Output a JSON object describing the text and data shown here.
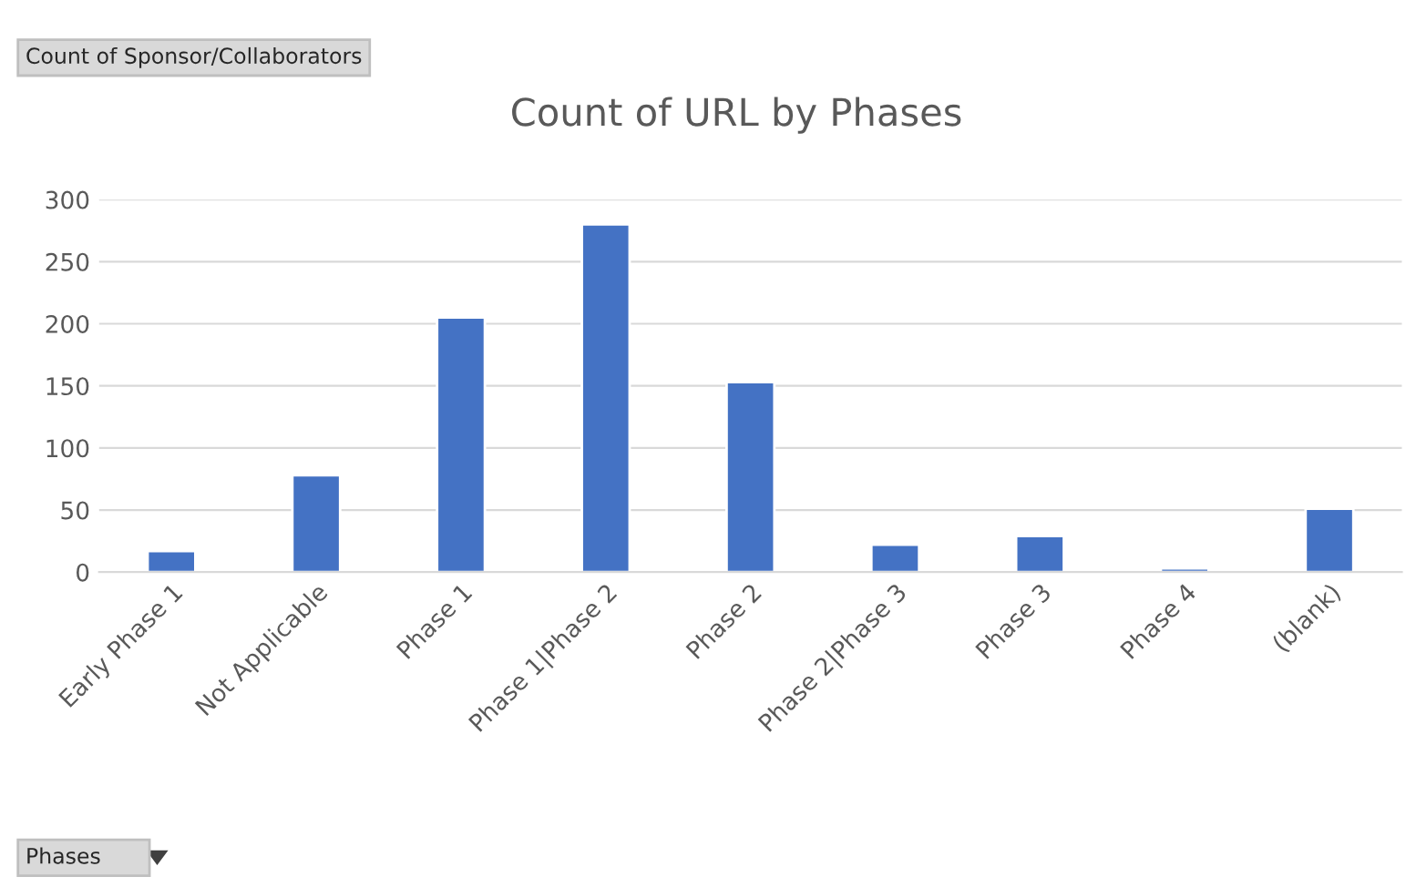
{
  "chart_data": {
    "type": "bar",
    "title": "Count of URL by Phases",
    "categories": [
      "Early Phase 1",
      "Not Applicable",
      "Phase 1",
      "Phase 1|Phase 2",
      "Phase 2",
      "Phase 2|Phase 3",
      "Phase 3",
      "Phase 4",
      "(blank)"
    ],
    "values": [
      17,
      78,
      205,
      280,
      153,
      22,
      29,
      3,
      51
    ],
    "color": "#4472c4",
    "ylim": [
      0,
      300
    ],
    "yticks": [
      0,
      50,
      100,
      150,
      200,
      250,
      300
    ],
    "grid": "y",
    "annotations": [
      "Count of Sponsor/Collaborators",
      "Phases"
    ]
  }
}
